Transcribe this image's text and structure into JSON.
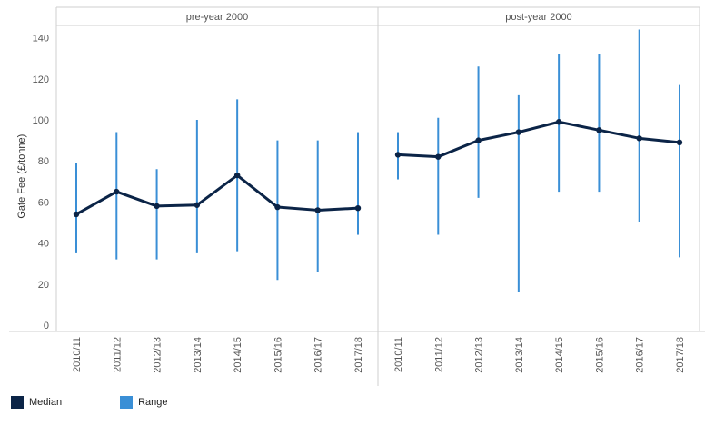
{
  "colors": {
    "median": "#0b2447",
    "range": "#3a8fd6",
    "frame": "#cfcfcf",
    "text": "#555555"
  },
  "chart_data": {
    "type": "line",
    "ylabel": "Gate Fee (£/tonne)",
    "ylim": [
      0,
      145
    ],
    "yticks": [
      0,
      20,
      40,
      60,
      80,
      100,
      120,
      140
    ],
    "categories": [
      "2010/11",
      "2011/12",
      "2012/13",
      "2013/14",
      "2014/15",
      "2015/16",
      "2016/17",
      "2017/18"
    ],
    "legend": [
      "Median",
      "Range"
    ],
    "panels": [
      {
        "title": "pre-year 2000",
        "median": [
          54,
          65,
          58,
          58.5,
          73,
          57.5,
          56,
          57
        ],
        "range_min": [
          35,
          32,
          32,
          35,
          36,
          22,
          26,
          44
        ],
        "range_max": [
          79,
          94,
          76,
          100,
          110,
          90,
          90,
          94
        ]
      },
      {
        "title": "post-year 2000",
        "median": [
          83,
          82,
          90,
          94,
          99,
          95,
          91,
          89
        ],
        "range_min": [
          71,
          44,
          62,
          16,
          65,
          65,
          50,
          33
        ],
        "range_max": [
          94,
          101,
          126,
          112,
          132,
          132,
          144,
          117
        ]
      }
    ]
  }
}
